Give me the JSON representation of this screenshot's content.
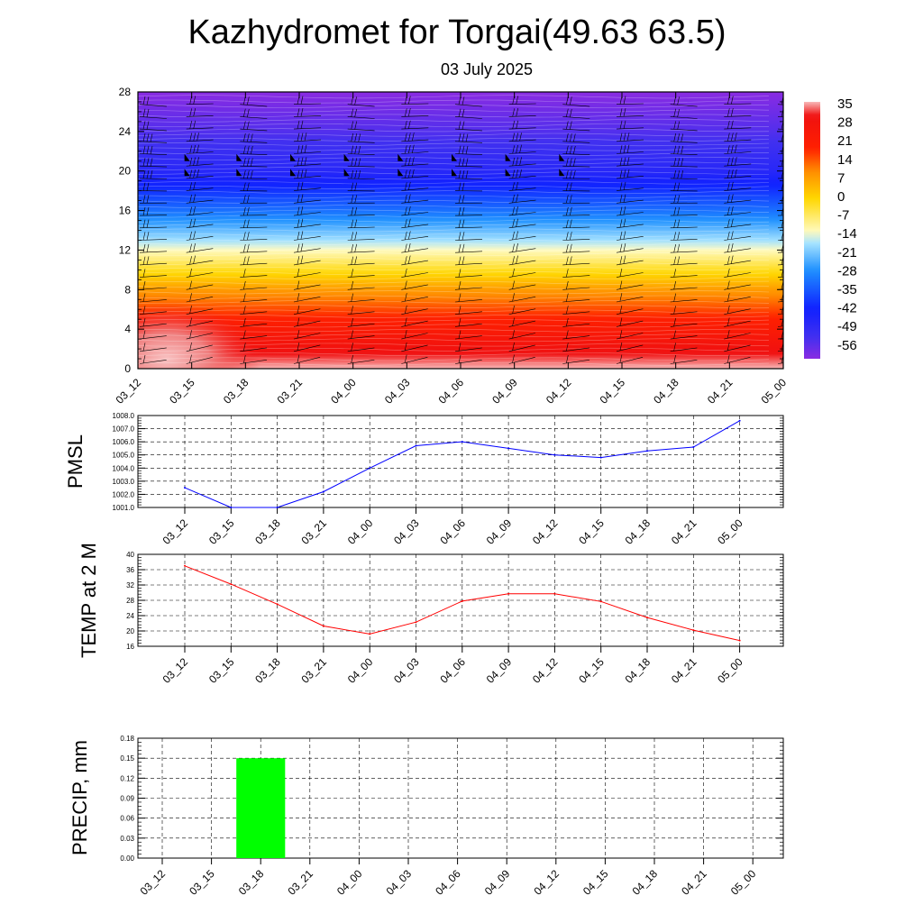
{
  "header": {
    "title": "Kazhydromet for Torgai(49.63 63.5)",
    "date": "03 July 2025"
  },
  "chart_data": [
    {
      "id": "cross_section",
      "type": "heatmap",
      "x_labels": [
        "03_12",
        "03_15",
        "03_18",
        "03_21",
        "04_00",
        "04_03",
        "04_06",
        "04_09",
        "04_12",
        "04_15",
        "04_18",
        "04_21",
        "05_00"
      ],
      "y_ticks": [
        "0",
        "4",
        "8",
        "12",
        "16",
        "20",
        "24",
        "28"
      ],
      "ylim": [
        0,
        28
      ],
      "colorbar_labels": [
        "35",
        "28",
        "21",
        "14",
        "7",
        "0",
        "-7",
        "-14",
        "-21",
        "-28",
        "-35",
        "-42",
        "-49",
        "-56"
      ],
      "colors": [
        "#f8b8b8",
        "#f01010",
        "#ff8c00",
        "#ffd700",
        "#fffac0",
        "#7fd0ff",
        "#1e90ff",
        "#1010ff",
        "#8a2be2"
      ],
      "profile_levels": [
        0,
        4,
        8,
        12,
        16,
        20,
        24,
        28
      ],
      "profile_temps": [
        35,
        22,
        8,
        -12,
        -30,
        -45,
        -52,
        -58
      ],
      "grid": false
    },
    {
      "id": "pmsl",
      "type": "line",
      "ylabel": "PMSL",
      "x_labels": [
        "03_12",
        "03_15",
        "03_18",
        "03_21",
        "04_00",
        "04_03",
        "04_06",
        "04_09",
        "04_12",
        "04_15",
        "04_18",
        "04_21",
        "05_00"
      ],
      "y_ticks": [
        "1001.0",
        "1002.0",
        "1003.0",
        "1004.0",
        "1005.0",
        "1006.0",
        "1007.0",
        "1008.0"
      ],
      "ylim": [
        1001.0,
        1008.0
      ],
      "values": [
        1002.5,
        1001.0,
        1001.0,
        1002.2,
        1004.0,
        1005.7,
        1006.0,
        1005.5,
        1005.0,
        1004.8,
        1005.3,
        1005.6,
        1007.6
      ],
      "color": "#0000ff",
      "grid": true
    },
    {
      "id": "temp2m",
      "type": "line",
      "ylabel": "TEMP at 2 M",
      "x_labels": [
        "03_12",
        "03_15",
        "03_18",
        "03_21",
        "04_00",
        "04_03",
        "04_06",
        "04_09",
        "04_12",
        "04_15",
        "04_18",
        "04_21",
        "05_00"
      ],
      "y_ticks": [
        "16",
        "20",
        "24",
        "28",
        "32",
        "36",
        "40"
      ],
      "ylim": [
        16,
        40
      ],
      "values": [
        37.0,
        32.2,
        27.0,
        21.3,
        19.2,
        22.3,
        27.8,
        29.7,
        29.7,
        27.7,
        23.5,
        20.2,
        17.5
      ],
      "color": "#ff0000",
      "grid": true
    },
    {
      "id": "precip",
      "type": "bar",
      "ylabel": "PRECIP, mm",
      "x_labels": [
        "03_12",
        "03_15",
        "03_18",
        "03_21",
        "04_00",
        "04_03",
        "04_06",
        "04_09",
        "04_12",
        "04_15",
        "04_18",
        "04_21",
        "05_00"
      ],
      "y_ticks": [
        "0.00",
        "0.03",
        "0.06",
        "0.09",
        "0.12",
        "0.15",
        "0.18"
      ],
      "ylim": [
        0,
        0.18
      ],
      "values": [
        0,
        0,
        0.15,
        0,
        0,
        0,
        0,
        0,
        0,
        0,
        0,
        0,
        0
      ],
      "color": "#00ff00",
      "grid": true
    }
  ]
}
